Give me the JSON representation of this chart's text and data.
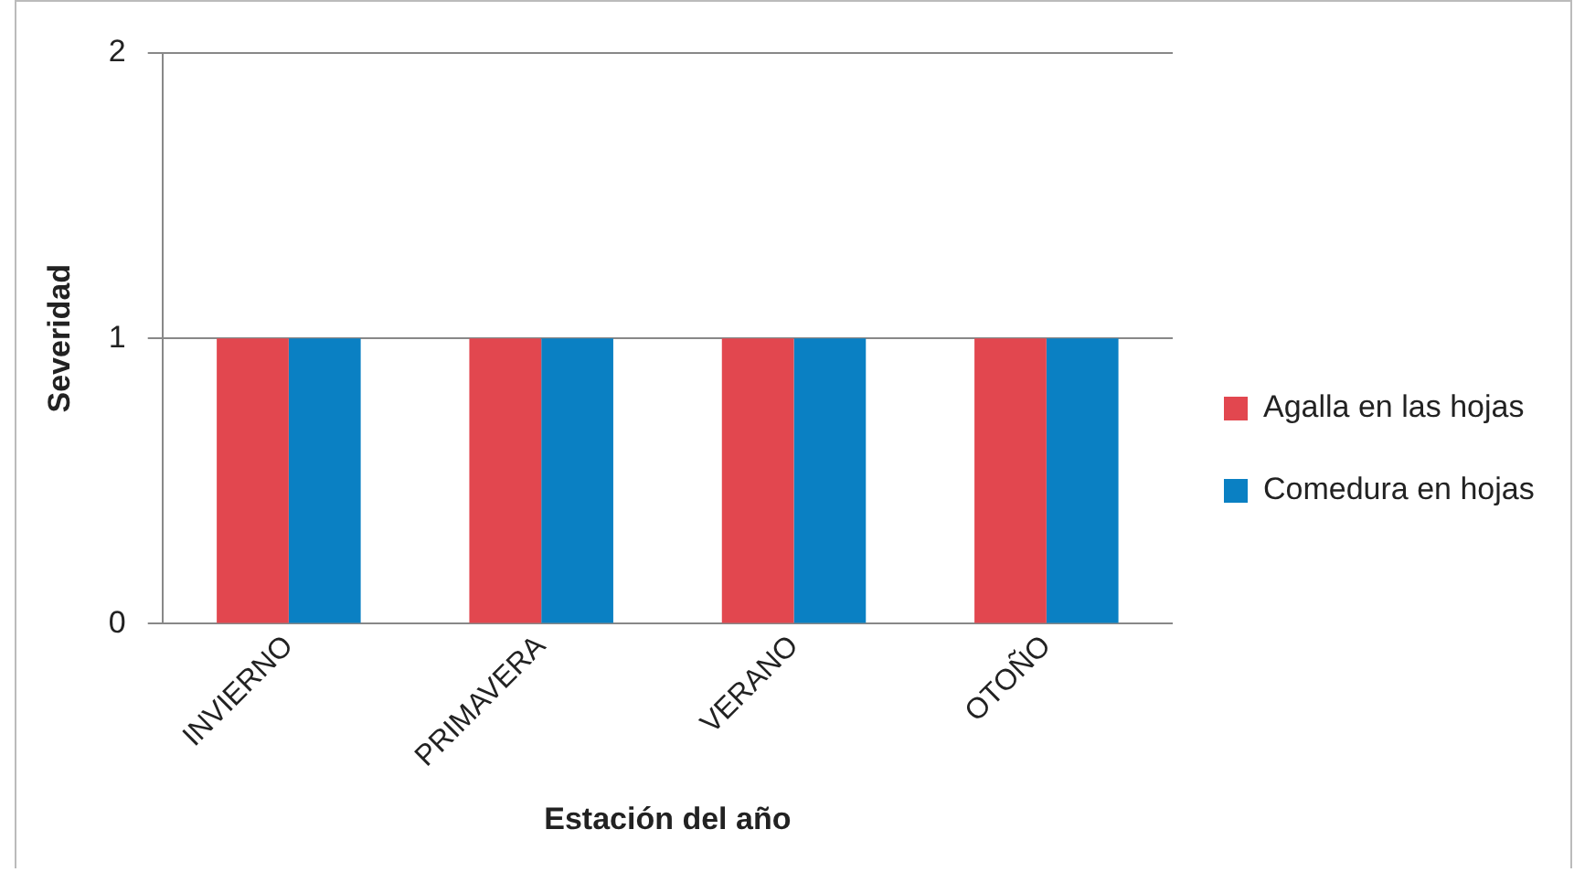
{
  "chart_data": {
    "type": "bar",
    "xlabel": "Estación del año",
    "ylabel": "Severidad",
    "categories": [
      "INVIERNO",
      "PRIMAVERA",
      "VERANO",
      "OTOÑO"
    ],
    "series": [
      {
        "name": "Agalla en las hojas",
        "color": "#e2474f",
        "values": [
          1,
          1,
          1,
          1
        ]
      },
      {
        "name": "Comedura en hojas",
        "color": "#0a80c3",
        "values": [
          1,
          1,
          1,
          1
        ]
      }
    ],
    "ylim": [
      0,
      2
    ],
    "yticks": [
      0,
      1,
      2
    ],
    "grid": "y",
    "legend": "right"
  }
}
